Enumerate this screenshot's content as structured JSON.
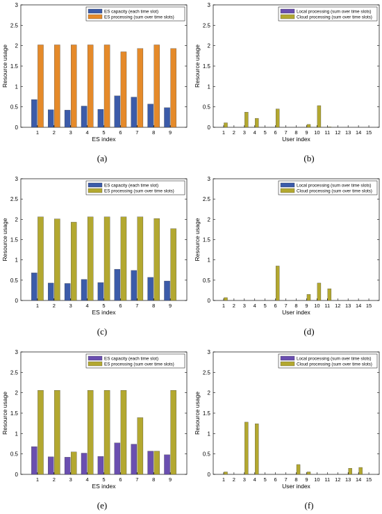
{
  "panels": [
    {
      "label": "(a)",
      "chart": {
        "type": "bar",
        "xlabel": "ES index",
        "ylabel": "Resource usage",
        "ylim": [
          0,
          3
        ],
        "yticks": [
          "0",
          "0.5",
          "1",
          "1.5",
          "2",
          "2.5",
          "3"
        ],
        "categories": [
          "1",
          "2",
          "3",
          "4",
          "5",
          "6",
          "7",
          "8",
          "9"
        ],
        "legend_position": "top-right",
        "series": [
          {
            "name": "ES capacity (each time slot)",
            "color": "#3b5ba9",
            "values": [
              0.68,
              0.43,
              0.42,
              0.52,
              0.44,
              0.77,
              0.74,
              0.57,
              0.48
            ]
          },
          {
            "name": "ES processing (sum over time slots)",
            "color": "#e58a2a",
            "values": [
              2.02,
              2.02,
              2.02,
              2.02,
              2.02,
              1.85,
              1.93,
              2.02,
              1.93
            ]
          }
        ]
      }
    },
    {
      "label": "(b)",
      "chart": {
        "type": "bar",
        "xlabel": "User index",
        "ylabel": "Resource usage",
        "ylim": [
          0,
          3
        ],
        "yticks": [
          "0",
          "0.5",
          "1",
          "1.5",
          "2",
          "2.5",
          "3"
        ],
        "categories": [
          "1",
          "2",
          "3",
          "4",
          "5",
          "6",
          "7",
          "8",
          "9",
          "10",
          "11",
          "12",
          "13",
          "14",
          "15"
        ],
        "legend_position": "top-right",
        "series": [
          {
            "name": "Local processing (sum over time slots)",
            "color": "#6a4fb0",
            "values": [
              0,
              0,
              0,
              0,
              0,
              0,
              0,
              0,
              0,
              0,
              0,
              0,
              0,
              0,
              0
            ]
          },
          {
            "name": "Cloud processing (sum over time slots)",
            "color": "#b3a830",
            "values": [
              0.11,
              0,
              0.37,
              0.22,
              0,
              0.45,
              0,
              0,
              0.07,
              0.53,
              0.01,
              0,
              0,
              0,
              0
            ]
          }
        ]
      }
    },
    {
      "label": "(c)",
      "chart": {
        "type": "bar",
        "xlabel": "ES index",
        "ylabel": "Resource usage",
        "ylim": [
          0,
          3
        ],
        "yticks": [
          "0",
          "0.5",
          "1",
          "1.5",
          "2",
          "2.5",
          "3"
        ],
        "categories": [
          "1",
          "2",
          "3",
          "4",
          "5",
          "6",
          "7",
          "8",
          "9"
        ],
        "legend_position": "top-right",
        "series": [
          {
            "name": "ES capacity (each time slot)",
            "color": "#3b5ba9",
            "values": [
              0.68,
              0.43,
              0.42,
              0.52,
              0.44,
              0.77,
              0.74,
              0.57,
              0.48
            ]
          },
          {
            "name": "ES processing (sum over time slots)",
            "color": "#b3a830",
            "values": [
              2.06,
              2.01,
              1.93,
              2.06,
              2.06,
              2.06,
              2.06,
              2.02,
              1.77
            ]
          }
        ]
      }
    },
    {
      "label": "(d)",
      "chart": {
        "type": "bar",
        "xlabel": "User index",
        "ylabel": "Resource usage",
        "ylim": [
          0,
          3
        ],
        "yticks": [
          "0",
          "0.5",
          "1",
          "1.5",
          "2",
          "2.5",
          "3"
        ],
        "categories": [
          "1",
          "2",
          "3",
          "4",
          "5",
          "6",
          "7",
          "8",
          "9",
          "10",
          "11",
          "12",
          "13",
          "14",
          "15"
        ],
        "legend_position": "top-right",
        "series": [
          {
            "name": "Local processing (sum over time slots)",
            "color": "#3b5ba9",
            "values": [
              0,
              0,
              0,
              0,
              0,
              0,
              0,
              0,
              0,
              0,
              0,
              0,
              0,
              0,
              0
            ]
          },
          {
            "name": "Cloud processing (sum over time slots)",
            "color": "#b3a830",
            "values": [
              0.07,
              0,
              0,
              0,
              0,
              0.85,
              0,
              0,
              0.15,
              0.43,
              0.29,
              0,
              0,
              0,
              0
            ]
          }
        ]
      }
    },
    {
      "label": "(e)",
      "chart": {
        "type": "bar",
        "xlabel": "ES index",
        "ylabel": "Resource usage",
        "ylim": [
          0,
          3
        ],
        "yticks": [
          "0",
          "0.5",
          "1",
          "1.5",
          "2",
          "2.5",
          "3"
        ],
        "categories": [
          "1",
          "2",
          "3",
          "4",
          "5",
          "6",
          "7",
          "8",
          "9"
        ],
        "legend_position": "top-right",
        "series": [
          {
            "name": "ES capacity (each time slot)",
            "color": "#6a4fb0",
            "values": [
              0.68,
              0.43,
              0.42,
              0.52,
              0.44,
              0.77,
              0.74,
              0.57,
              0.48
            ]
          },
          {
            "name": "ES processing (sum over time slots)",
            "color": "#b3a830",
            "values": [
              2.06,
              2.06,
              0.55,
              2.06,
              2.06,
              2.06,
              1.39,
              0.57,
              2.06
            ]
          }
        ]
      }
    },
    {
      "label": "(f)",
      "chart": {
        "type": "bar",
        "xlabel": "User index",
        "ylabel": "Resource usage",
        "ylim": [
          0,
          3
        ],
        "yticks": [
          "0",
          "0.5",
          "1",
          "1.5",
          "2",
          "2.5",
          "3"
        ],
        "categories": [
          "1",
          "2",
          "3",
          "4",
          "5",
          "6",
          "7",
          "8",
          "9",
          "10",
          "11",
          "12",
          "13",
          "14",
          "15"
        ],
        "legend_position": "top-right",
        "series": [
          {
            "name": "Local processing (sum over time slots)",
            "color": "#6a4fb0",
            "values": [
              0,
              0,
              0,
              0,
              0,
              0,
              0,
              0,
              0,
              0,
              0,
              0,
              0,
              0,
              0
            ]
          },
          {
            "name": "Cloud processing (sum over time slots)",
            "color": "#b3a830",
            "values": [
              0.06,
              0,
              1.28,
              1.24,
              0,
              0,
              0,
              0.24,
              0.06,
              0,
              0,
              0,
              0.15,
              0.17,
              0
            ]
          }
        ]
      }
    }
  ],
  "chart_data": [
    {
      "type": "bar",
      "xlabel": "ES index",
      "ylabel": "Resource usage",
      "ylim": [
        0,
        3
      ],
      "categories": [
        "1",
        "2",
        "3",
        "4",
        "5",
        "6",
        "7",
        "8",
        "9"
      ],
      "series": [
        {
          "name": "ES capacity (each time slot)",
          "values": [
            0.68,
            0.43,
            0.42,
            0.52,
            0.44,
            0.77,
            0.74,
            0.57,
            0.48
          ]
        },
        {
          "name": "ES processing (sum over time slots)",
          "values": [
            2.02,
            2.02,
            2.02,
            2.02,
            2.02,
            1.85,
            1.93,
            2.02,
            1.93
          ]
        }
      ]
    },
    {
      "type": "bar",
      "xlabel": "User index",
      "ylabel": "Resource usage",
      "ylim": [
        0,
        3
      ],
      "categories": [
        "1",
        "2",
        "3",
        "4",
        "5",
        "6",
        "7",
        "8",
        "9",
        "10",
        "11",
        "12",
        "13",
        "14",
        "15"
      ],
      "series": [
        {
          "name": "Local processing (sum over time slots)",
          "values": [
            0,
            0,
            0,
            0,
            0,
            0,
            0,
            0,
            0,
            0,
            0,
            0,
            0,
            0,
            0
          ]
        },
        {
          "name": "Cloud processing (sum over time slots)",
          "values": [
            0.11,
            0,
            0.37,
            0.22,
            0,
            0.45,
            0,
            0,
            0.07,
            0.53,
            0.01,
            0,
            0,
            0,
            0
          ]
        }
      ]
    },
    {
      "type": "bar",
      "xlabel": "ES index",
      "ylabel": "Resource usage",
      "ylim": [
        0,
        3
      ],
      "categories": [
        "1",
        "2",
        "3",
        "4",
        "5",
        "6",
        "7",
        "8",
        "9"
      ],
      "series": [
        {
          "name": "ES capacity (each time slot)",
          "values": [
            0.68,
            0.43,
            0.42,
            0.52,
            0.44,
            0.77,
            0.74,
            0.57,
            0.48
          ]
        },
        {
          "name": "ES processing (sum over time slots)",
          "values": [
            2.06,
            2.01,
            1.93,
            2.06,
            2.06,
            2.06,
            2.06,
            2.02,
            1.77
          ]
        }
      ]
    },
    {
      "type": "bar",
      "xlabel": "User index",
      "ylabel": "Resource usage",
      "ylim": [
        0,
        3
      ],
      "categories": [
        "1",
        "2",
        "3",
        "4",
        "5",
        "6",
        "7",
        "8",
        "9",
        "10",
        "11",
        "12",
        "13",
        "14",
        "15"
      ],
      "series": [
        {
          "name": "Local processing (sum over time slots)",
          "values": [
            0,
            0,
            0,
            0,
            0,
            0,
            0,
            0,
            0,
            0,
            0,
            0,
            0,
            0,
            0
          ]
        },
        {
          "name": "Cloud processing (sum over time slots)",
          "values": [
            0.07,
            0,
            0,
            0,
            0,
            0.85,
            0,
            0,
            0.15,
            0.43,
            0.29,
            0,
            0,
            0,
            0
          ]
        }
      ]
    },
    {
      "type": "bar",
      "xlabel": "ES index",
      "ylabel": "Resource usage",
      "ylim": [
        0,
        3
      ],
      "categories": [
        "1",
        "2",
        "3",
        "4",
        "5",
        "6",
        "7",
        "8",
        "9"
      ],
      "series": [
        {
          "name": "ES capacity (each time slot)",
          "values": [
            0.68,
            0.43,
            0.42,
            0.52,
            0.44,
            0.77,
            0.74,
            0.57,
            0.48
          ]
        },
        {
          "name": "ES processing (sum over time slots)",
          "values": [
            2.06,
            2.06,
            0.55,
            2.06,
            2.06,
            2.06,
            1.39,
            0.57,
            2.06
          ]
        }
      ]
    },
    {
      "type": "bar",
      "xlabel": "User index",
      "ylabel": "Resource usage",
      "ylim": [
        0,
        3
      ],
      "categories": [
        "1",
        "2",
        "3",
        "4",
        "5",
        "6",
        "7",
        "8",
        "9",
        "10",
        "11",
        "12",
        "13",
        "14",
        "15"
      ],
      "series": [
        {
          "name": "Local processing (sum over time slots)",
          "values": [
            0,
            0,
            0,
            0,
            0,
            0,
            0,
            0,
            0,
            0,
            0,
            0,
            0,
            0,
            0
          ]
        },
        {
          "name": "Cloud processing (sum over time slots)",
          "values": [
            0.06,
            0,
            1.28,
            1.24,
            0,
            0,
            0,
            0.24,
            0.06,
            0,
            0,
            0,
            0.15,
            0.17,
            0
          ]
        }
      ]
    }
  ]
}
